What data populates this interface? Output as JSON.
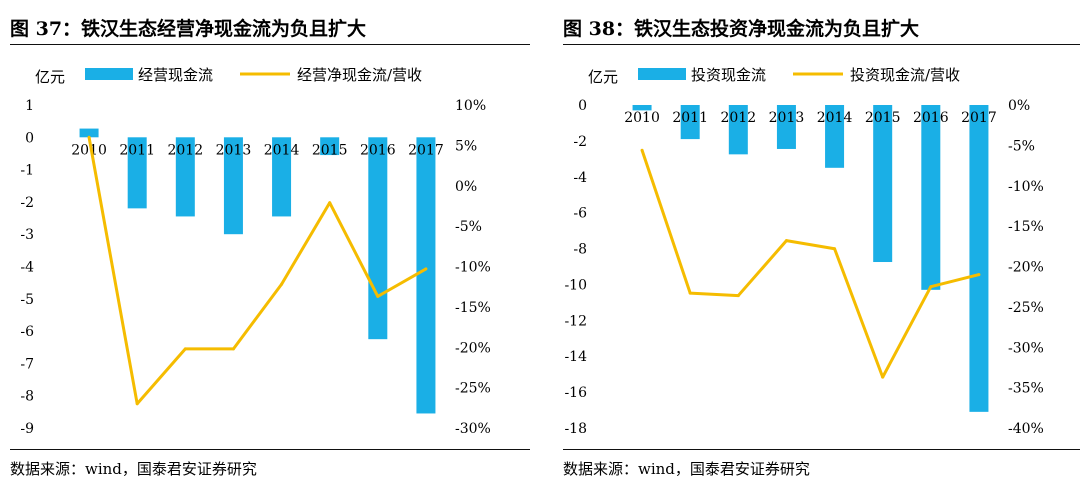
{
  "colors": {
    "bar": "#1AAFE6",
    "line": "#F5BC00"
  },
  "panels": [
    {
      "title": "图 37：铁汉生态经营净现金流为负且扩大",
      "source": "数据来源：wind，国泰君安证券研究",
      "chart_data": {
        "type": "bar+line",
        "unit_label": "亿元",
        "categories": [
          "2010",
          "2011",
          "2012",
          "2013",
          "2014",
          "2015",
          "2016",
          "2017"
        ],
        "series": [
          {
            "name": "经营现金流",
            "type": "bar",
            "axis": "left",
            "values": [
              0.27,
              -2.2,
              -2.45,
              -3.0,
              -2.45,
              -0.55,
              -6.25,
              -8.55
            ]
          },
          {
            "name": "经营净现金流/营收",
            "type": "line",
            "axis": "right",
            "values": [
              6.0,
              -27.0,
              -20.2,
              -20.2,
              -12.2,
              -2.1,
              -13.7,
              -10.3
            ]
          }
        ],
        "left_axis": {
          "min": -9,
          "max": 1,
          "ticks": [
            1,
            0,
            -1,
            -2,
            -3,
            -4,
            -5,
            -6,
            -7,
            -8,
            -9
          ]
        },
        "right_axis": {
          "min": -30,
          "max": 10,
          "ticks": [
            10,
            5,
            0,
            -5,
            -10,
            -15,
            -20,
            -25,
            -30
          ],
          "tick_labels": [
            "10%",
            "5%",
            "0%",
            "-5%",
            "-10%",
            "-15%",
            "-20%",
            "-25%",
            "-30%"
          ]
        },
        "legend": "top",
        "grid": false
      }
    },
    {
      "title": "图 38：铁汉生态投资净现金流为负且扩大",
      "source": "数据来源：wind，国泰君安证券研究",
      "chart_data": {
        "type": "bar+line",
        "unit_label": "亿元",
        "categories": [
          "2010",
          "2011",
          "2012",
          "2013",
          "2014",
          "2015",
          "2016",
          "2017"
        ],
        "series": [
          {
            "name": "投资现金流",
            "type": "bar",
            "axis": "left",
            "values": [
              -0.3,
              -1.9,
              -2.75,
              -2.45,
              -3.5,
              -8.75,
              -10.3,
              -17.1
            ]
          },
          {
            "name": "投资现金流/营收",
            "type": "line",
            "axis": "right",
            "values": [
              -5.6,
              -23.3,
              -23.6,
              -16.8,
              -17.8,
              -33.7,
              -22.5,
              -21.0
            ]
          }
        ],
        "left_axis": {
          "min": -18,
          "max": 0,
          "ticks": [
            0,
            -2,
            -4,
            -6,
            -8,
            -10,
            -12,
            -14,
            -16,
            -18
          ]
        },
        "right_axis": {
          "min": -40,
          "max": 0,
          "ticks": [
            0,
            -5,
            -10,
            -15,
            -20,
            -25,
            -30,
            -35,
            -40
          ],
          "tick_labels": [
            "0%",
            "-5%",
            "-10%",
            "-15%",
            "-20%",
            "-25%",
            "-30%",
            "-35%",
            "-40%"
          ]
        },
        "legend": "top",
        "grid": false
      }
    }
  ]
}
